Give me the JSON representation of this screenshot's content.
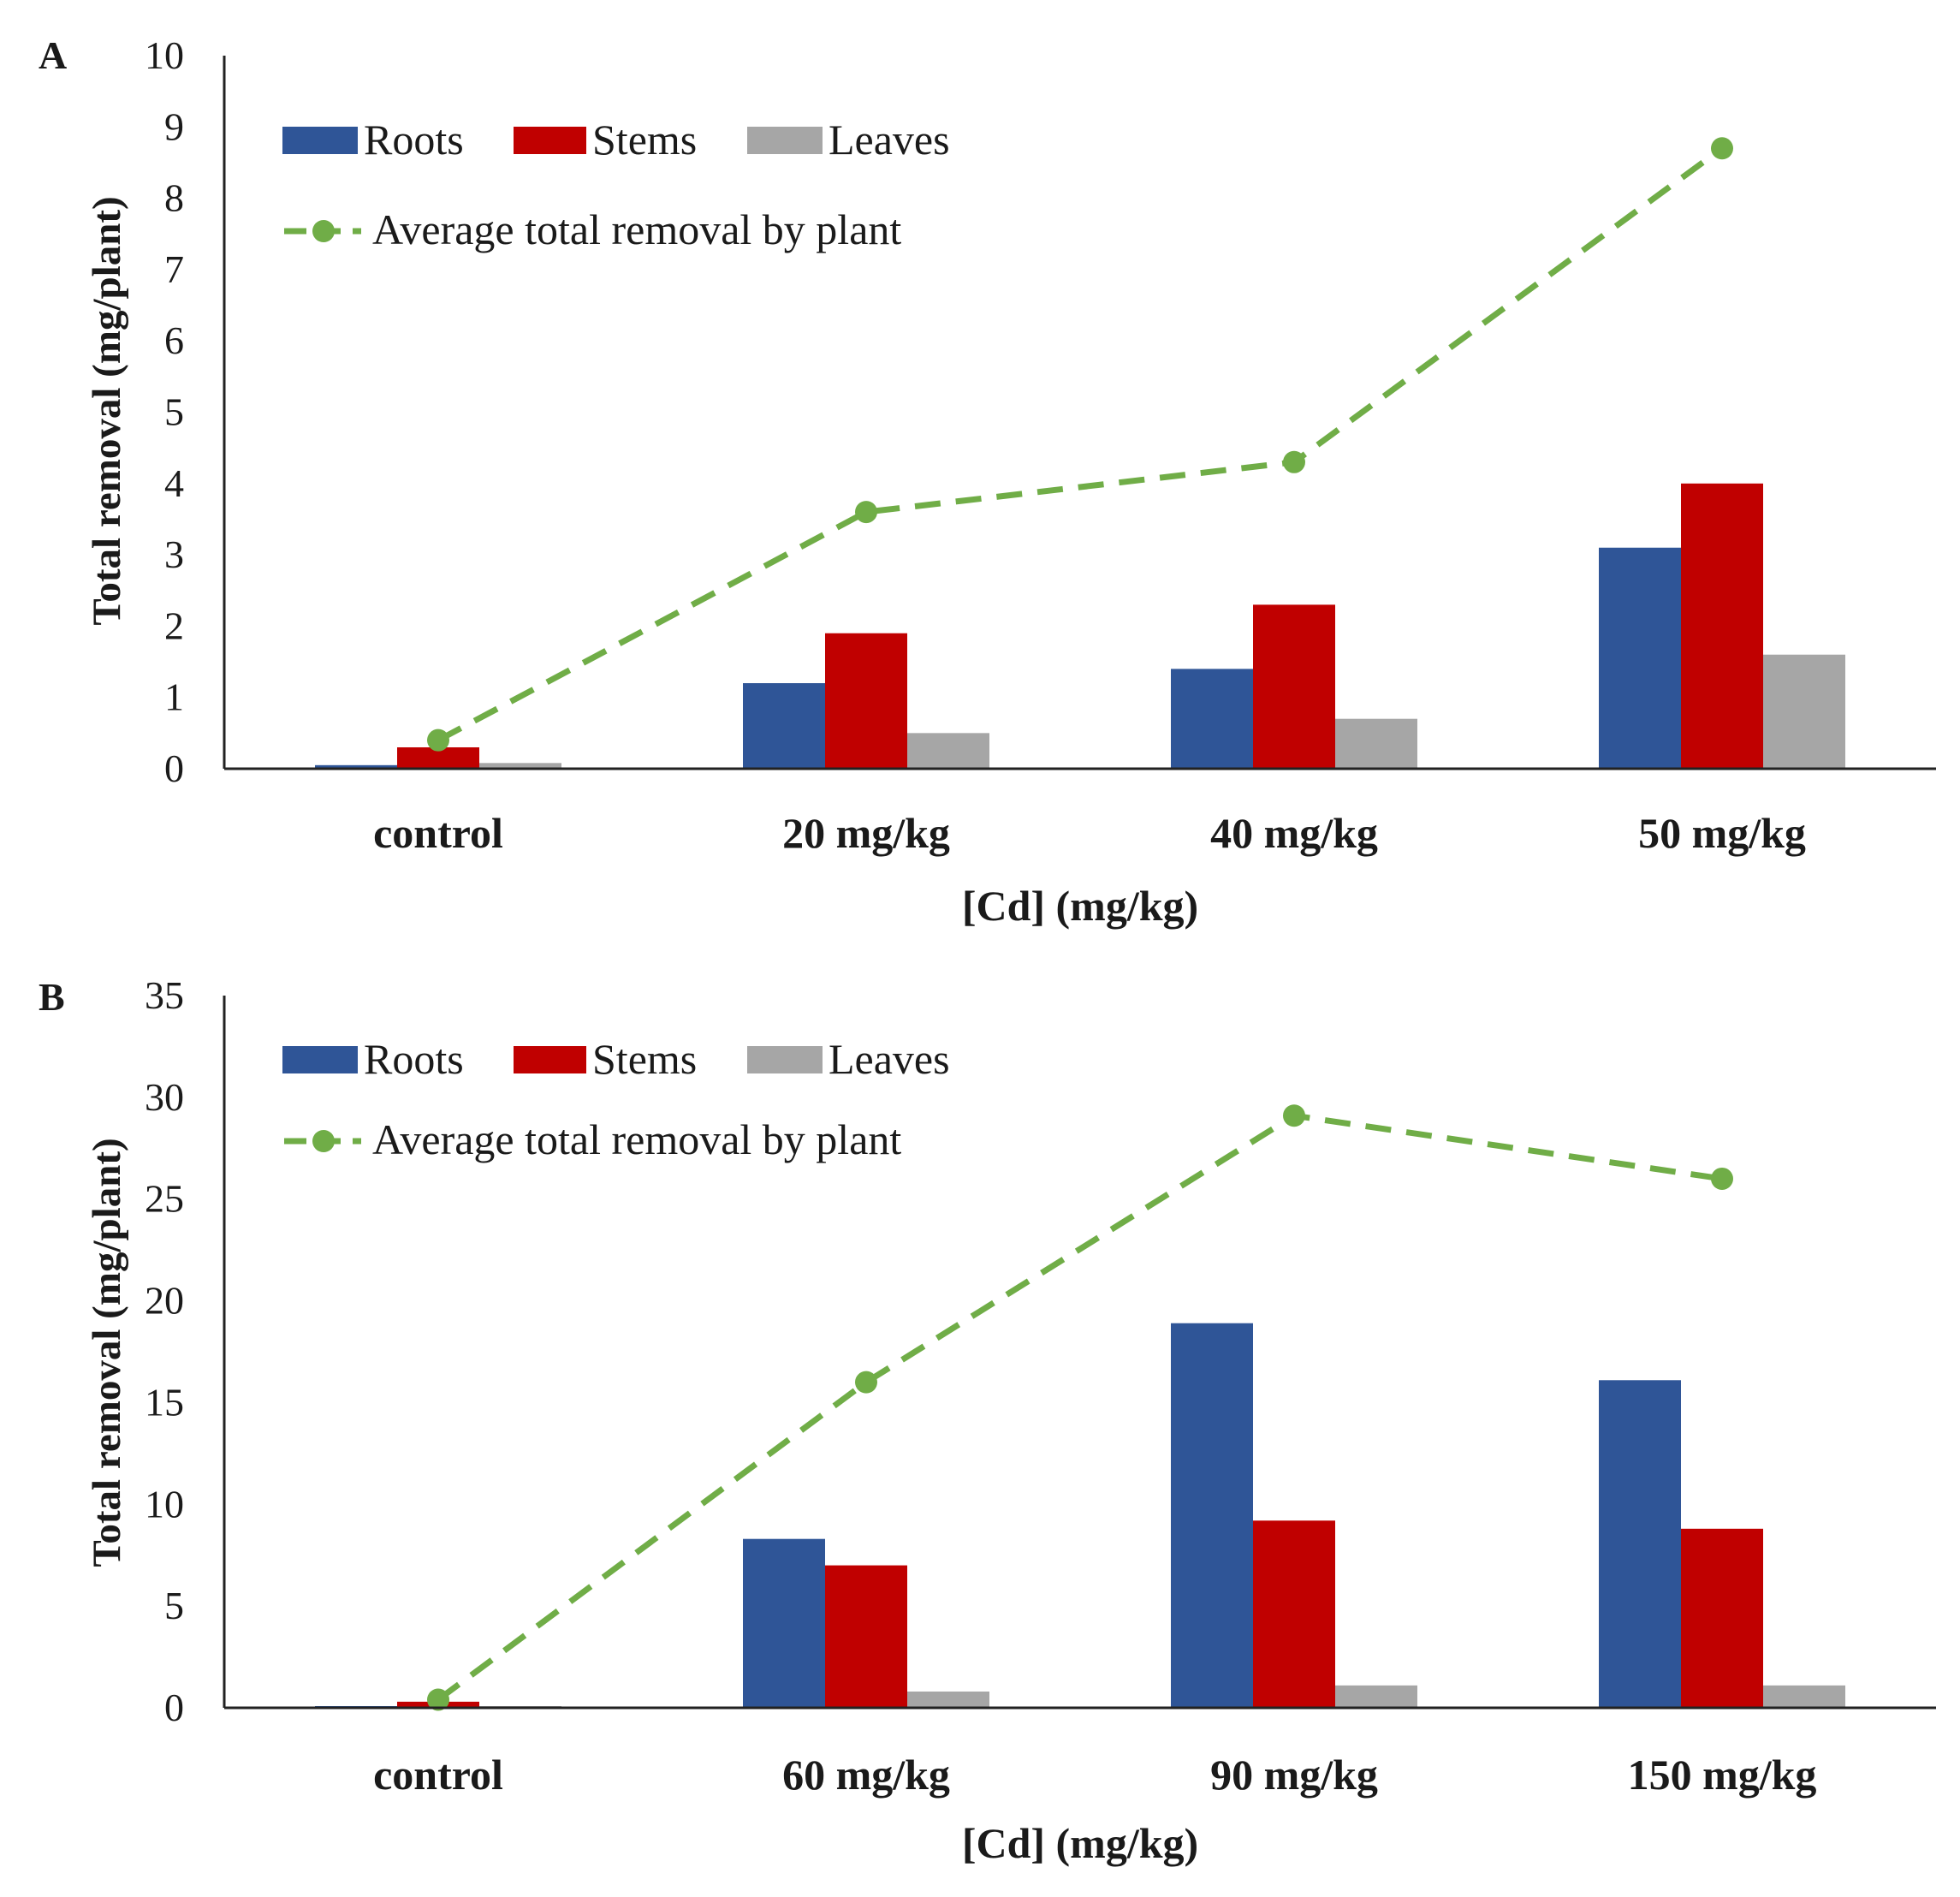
{
  "colors": {
    "roots": "#2F5597",
    "stems": "#C00000",
    "leaves": "#A6A6A6",
    "line": "#70AD47"
  },
  "chart_data": [
    {
      "panel": "A",
      "type": "bar",
      "categories": [
        "control",
        "20 mg/kg",
        "40 mg/kg",
        "50 mg/kg"
      ],
      "series": [
        {
          "name": "Roots",
          "type": "bar",
          "values": [
            0.05,
            1.2,
            1.4,
            3.1
          ]
        },
        {
          "name": "Stems",
          "type": "bar",
          "values": [
            0.3,
            1.9,
            2.3,
            4.0
          ]
        },
        {
          "name": "Leaves",
          "type": "bar",
          "values": [
            0.08,
            0.5,
            0.7,
            1.6
          ]
        },
        {
          "name": "Average total removal by plant",
          "type": "line",
          "values": [
            0.4,
            3.6,
            4.3,
            8.7
          ]
        }
      ],
      "yticks": [
        0,
        1,
        2,
        3,
        4,
        5,
        6,
        7,
        8,
        9,
        10
      ],
      "ylim": [
        0,
        10
      ],
      "xlabel": "[Cd] (mg/kg)",
      "ylabel": "Total removal (mg/plant)",
      "legend": "top-left",
      "grid": false
    },
    {
      "panel": "B",
      "type": "bar",
      "categories": [
        "control",
        "60 mg/kg",
        "90 mg/kg",
        "150 mg/kg"
      ],
      "series": [
        {
          "name": "Roots",
          "type": "bar",
          "values": [
            0.05,
            8.3,
            18.9,
            16.1
          ]
        },
        {
          "name": "Stems",
          "type": "bar",
          "values": [
            0.3,
            7.0,
            9.2,
            8.8
          ]
        },
        {
          "name": "Leaves",
          "type": "bar",
          "values": [
            0.05,
            0.8,
            1.1,
            1.1
          ]
        },
        {
          "name": "Average total removal by plant",
          "type": "line",
          "values": [
            0.4,
            16.0,
            29.1,
            26.0
          ]
        }
      ],
      "yticks": [
        0,
        5,
        10,
        15,
        20,
        25,
        30,
        35
      ],
      "ylim": [
        0,
        35
      ],
      "xlabel": "[Cd] (mg/kg)",
      "ylabel": "Total removal (mg/plant)",
      "legend": "top-left",
      "grid": false
    }
  ]
}
